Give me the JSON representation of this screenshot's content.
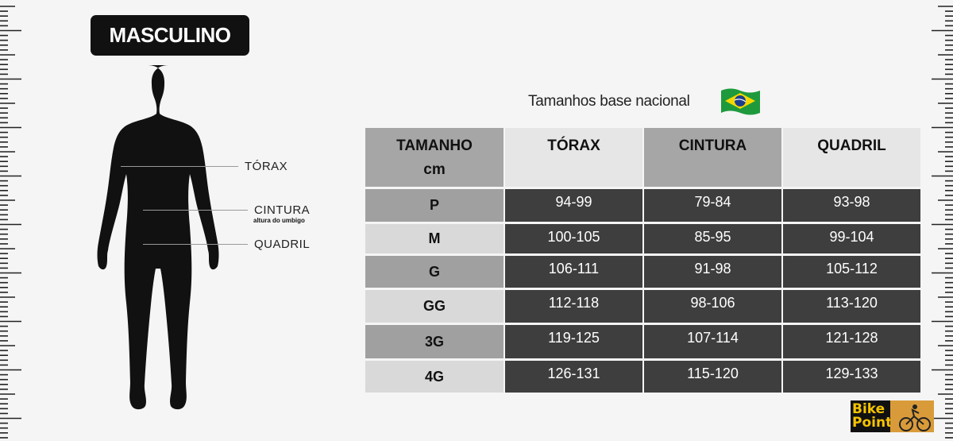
{
  "badge": "MASCULINO",
  "figure": {
    "labels": {
      "torax": "TÓRAX",
      "cintura": "CINTURA",
      "cintura_sub": "altura do umbigo",
      "quadril": "QUADRIL"
    }
  },
  "title": "Tamanhos base nacional",
  "flag_icon": "brazil-flag-icon",
  "table": {
    "headers": [
      "TAMANHO",
      "TÓRAX",
      "CINTURA",
      "QUADRIL"
    ],
    "header_sub": "cm",
    "rows": [
      {
        "size": "P",
        "torax": "94-99",
        "cintura": "79-84",
        "quadril": "93-98"
      },
      {
        "size": "M",
        "torax": "100-105",
        "cintura": "85-95",
        "quadril": "99-104"
      },
      {
        "size": "G",
        "torax": "106-111",
        "cintura": "91-98",
        "quadril": "105-112"
      },
      {
        "size": "GG",
        "torax": "112-118",
        "cintura": "98-106",
        "quadril": "113-120"
      },
      {
        "size": "3G",
        "torax": "119-125",
        "cintura": "107-114",
        "quadril": "121-128"
      },
      {
        "size": "4G",
        "torax": "126-131",
        "cintura": "115-120",
        "quadril": "129-133"
      }
    ]
  },
  "logo": {
    "line1": "Bike",
    "line2": "Point"
  },
  "colors": {
    "cell_dark": "#3e3e3e",
    "header_dark": "#a6a6a6",
    "header_light": "#e6e6e6"
  }
}
